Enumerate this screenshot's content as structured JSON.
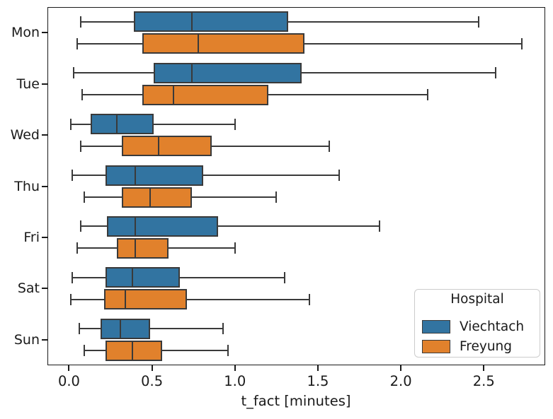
{
  "chart_data": {
    "type": "boxplot",
    "orientation": "horizontal",
    "title": "",
    "xlabel": "t_fact [minutes]",
    "ylabel": "",
    "categories": [
      "Mon",
      "Tue",
      "Wed",
      "Thu",
      "Fri",
      "Sat",
      "Sun"
    ],
    "x_tick_labels": [
      "0.0",
      "0.5",
      "1.0",
      "1.5",
      "2.0",
      "2.5"
    ],
    "x_tick_values": [
      0.0,
      0.5,
      1.0,
      1.5,
      2.0,
      2.5
    ],
    "xlim": [
      -0.13,
      2.87
    ],
    "grid": false,
    "legend": {
      "title": "Hospital",
      "position": "lower right",
      "entries": [
        {
          "label": "Viechtach",
          "color": "#3274a1"
        },
        {
          "label": "Freyung",
          "color": "#e1812c"
        }
      ]
    },
    "series": [
      {
        "name": "Viechtach",
        "color": "#3274a1",
        "boxes": [
          {
            "category": "Mon",
            "whisker_low": 0.07,
            "q1": 0.39,
            "median": 0.74,
            "q3": 1.32,
            "whisker_high": 2.47
          },
          {
            "category": "Tue",
            "whisker_low": 0.03,
            "q1": 0.51,
            "median": 0.74,
            "q3": 1.4,
            "whisker_high": 2.57
          },
          {
            "category": "Wed",
            "whisker_low": 0.01,
            "q1": 0.13,
            "median": 0.29,
            "q3": 0.51,
            "whisker_high": 1.0
          },
          {
            "category": "Thu",
            "whisker_low": 0.02,
            "q1": 0.22,
            "median": 0.4,
            "q3": 0.81,
            "whisker_high": 1.63
          },
          {
            "category": "Fri",
            "whisker_low": 0.07,
            "q1": 0.23,
            "median": 0.4,
            "q3": 0.9,
            "whisker_high": 1.87
          },
          {
            "category": "Sat",
            "whisker_low": 0.02,
            "q1": 0.22,
            "median": 0.38,
            "q3": 0.67,
            "whisker_high": 1.3
          },
          {
            "category": "Sun",
            "whisker_low": 0.06,
            "q1": 0.19,
            "median": 0.31,
            "q3": 0.49,
            "whisker_high": 0.93
          }
        ]
      },
      {
        "name": "Freyung",
        "color": "#e1812c",
        "boxes": [
          {
            "category": "Mon",
            "whisker_low": 0.05,
            "q1": 0.44,
            "median": 0.78,
            "q3": 1.42,
            "whisker_high": 2.73
          },
          {
            "category": "Tue",
            "whisker_low": 0.08,
            "q1": 0.44,
            "median": 0.63,
            "q3": 1.2,
            "whisker_high": 2.16
          },
          {
            "category": "Wed",
            "whisker_low": 0.07,
            "q1": 0.32,
            "median": 0.54,
            "q3": 0.86,
            "whisker_high": 1.57
          },
          {
            "category": "Thu",
            "whisker_low": 0.09,
            "q1": 0.32,
            "median": 0.49,
            "q3": 0.74,
            "whisker_high": 1.25
          },
          {
            "category": "Fri",
            "whisker_low": 0.05,
            "q1": 0.29,
            "median": 0.4,
            "q3": 0.6,
            "whisker_high": 1.0
          },
          {
            "category": "Sat",
            "whisker_low": 0.01,
            "q1": 0.21,
            "median": 0.34,
            "q3": 0.71,
            "whisker_high": 1.45
          },
          {
            "category": "Sun",
            "whisker_low": 0.09,
            "q1": 0.22,
            "median": 0.38,
            "q3": 0.56,
            "whisker_high": 0.96
          }
        ]
      }
    ],
    "colors": {
      "box_edge": "#3a3a3a",
      "spine": "#1a1a1a",
      "background": "#ffffff",
      "viechtach_blue": "#3274a1",
      "freyung_orange": "#e1812c"
    }
  }
}
